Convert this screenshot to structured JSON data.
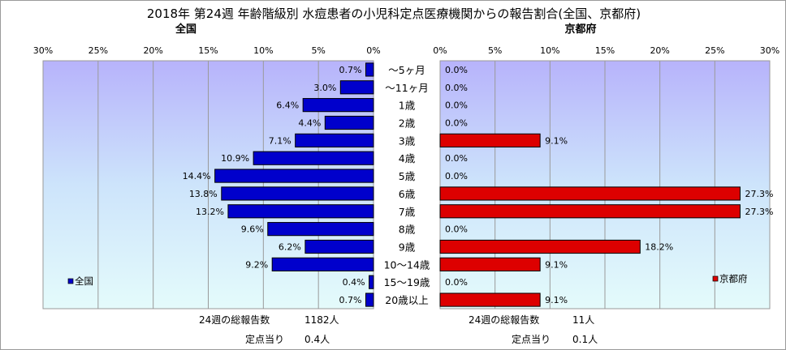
{
  "title": "2018年 第24週 年齢階級別 水痘患者の小児科定点医療機関からの報告割合(全国、京都府)",
  "categories": [
    "〜5ヶ月",
    "〜11ヶ月",
    "1歳",
    "2歳",
    "3歳",
    "4歳",
    "5歳",
    "6歳",
    "7歳",
    "8歳",
    "9歳",
    "10〜14歳",
    "15〜19歳",
    "20歳以上"
  ],
  "left_panel": {
    "heading": "全国",
    "legend": "全国",
    "color": "#0000cc",
    "axis_ticks": [
      "30%",
      "25%",
      "20%",
      "15%",
      "10%",
      "5%",
      "0%"
    ],
    "total_label": "24週の総報告数",
    "total_value": "1182人",
    "per_site_label": "定点当り",
    "per_site_value": "0.4人"
  },
  "right_panel": {
    "heading": "京都府",
    "legend": "京都府",
    "color": "#dd0000",
    "axis_ticks": [
      "0%",
      "5%",
      "10%",
      "15%",
      "20%",
      "25%",
      "30%"
    ],
    "total_label": "24週の総報告数",
    "total_value": "11人",
    "per_site_label": "定点当り",
    "per_site_value": "0.1人"
  },
  "chart_data": [
    {
      "type": "bar",
      "orientation": "horizontal",
      "direction": "right-to-left",
      "title": "全国",
      "categories": [
        "〜5ヶ月",
        "〜11ヶ月",
        "1歳",
        "2歳",
        "3歳",
        "4歳",
        "5歳",
        "6歳",
        "7歳",
        "8歳",
        "9歳",
        "10〜14歳",
        "15〜19歳",
        "20歳以上"
      ],
      "series": [
        {
          "name": "全国",
          "values": [
            0.7,
            3.0,
            6.4,
            4.4,
            7.1,
            10.9,
            14.4,
            13.8,
            13.2,
            9.6,
            6.2,
            9.2,
            0.4,
            0.7
          ],
          "labels": [
            "0.7%",
            "3.0%",
            "6.4%",
            "4.4%",
            "7.1%",
            "10.9%",
            "14.4%",
            "13.8%",
            "13.2%",
            "9.6%",
            "6.2%",
            "9.2%",
            "0.4%",
            "0.7%"
          ]
        }
      ],
      "xlim": [
        0,
        30
      ],
      "ticks": [
        0,
        5,
        10,
        15,
        20,
        25,
        30
      ],
      "grid": true,
      "legend_position": "left"
    },
    {
      "type": "bar",
      "orientation": "horizontal",
      "direction": "left-to-right",
      "title": "京都府",
      "categories": [
        "〜5ヶ月",
        "〜11ヶ月",
        "1歳",
        "2歳",
        "3歳",
        "4歳",
        "5歳",
        "6歳",
        "7歳",
        "8歳",
        "9歳",
        "10〜14歳",
        "15〜19歳",
        "20歳以上"
      ],
      "series": [
        {
          "name": "京都府",
          "values": [
            0.0,
            0.0,
            0.0,
            0.0,
            9.1,
            0.0,
            0.0,
            27.3,
            27.3,
            0.0,
            18.2,
            9.1,
            0.0,
            9.1
          ],
          "labels": [
            "0.0%",
            "0.0%",
            "0.0%",
            "0.0%",
            "9.1%",
            "0.0%",
            "0.0%",
            "27.3%",
            "27.3%",
            "0.0%",
            "18.2%",
            "9.1%",
            "0.0%",
            "9.1%"
          ]
        }
      ],
      "xlim": [
        0,
        30
      ],
      "ticks": [
        0,
        5,
        10,
        15,
        20,
        25,
        30
      ],
      "grid": true,
      "legend_position": "right"
    }
  ]
}
